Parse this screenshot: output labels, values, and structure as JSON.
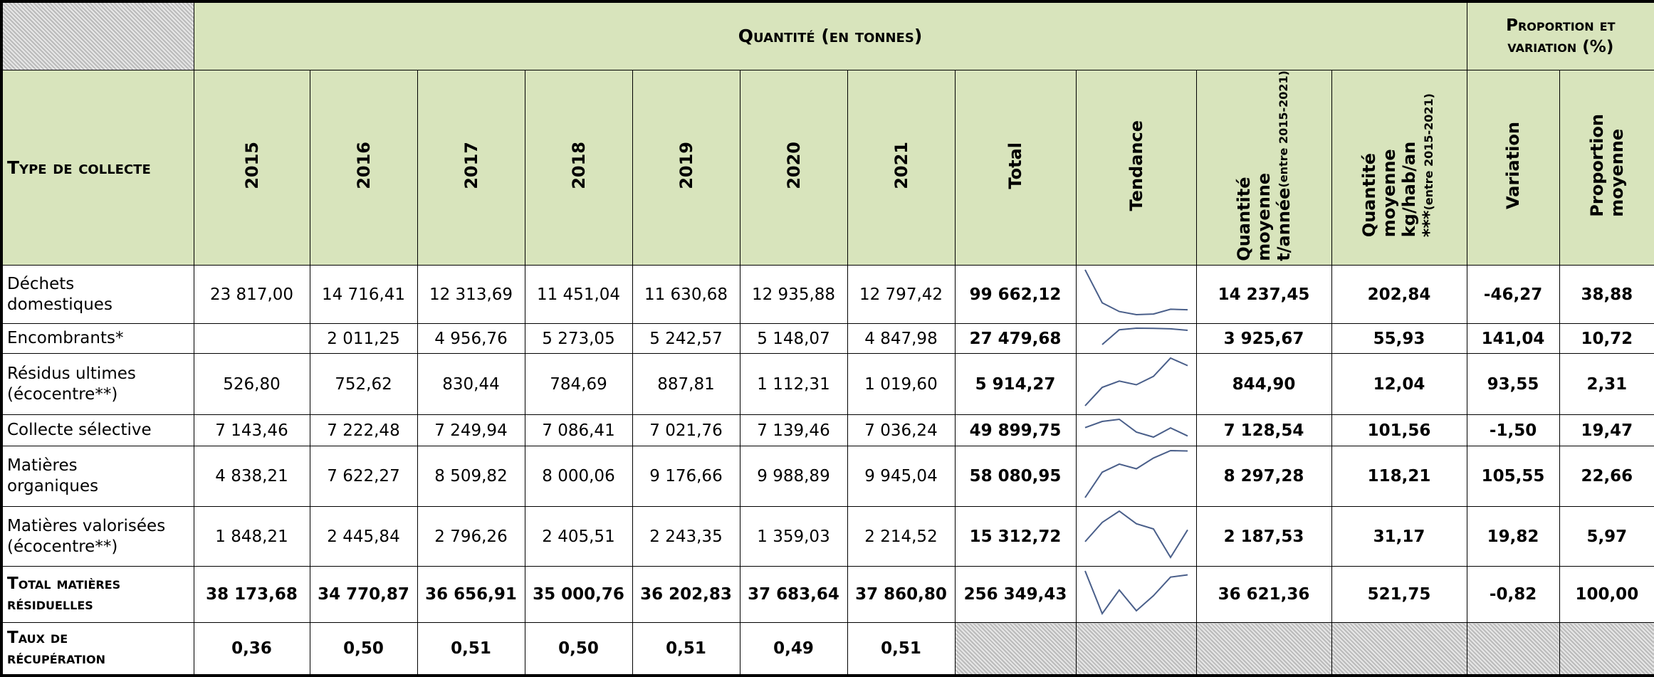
{
  "header": {
    "group_quantity": "Quantité (en tonnes)",
    "group_proportion": [
      "Proportion et",
      "variation (%)"
    ],
    "row_label": "Type de collecte",
    "columns": [
      [
        "2015"
      ],
      [
        "2016"
      ],
      [
        "2017"
      ],
      [
        "2018"
      ],
      [
        "2019"
      ],
      [
        "2020"
      ],
      [
        "2021"
      ],
      [
        "Total"
      ],
      [
        "Tendance"
      ],
      [
        "Quantité",
        "moyenne",
        "t/année"
      ],
      [
        "Quantité",
        "moyenne",
        "kg/hab/an",
        "***"
      ],
      [
        "Variation"
      ],
      [
        "Proportion",
        "moyenne"
      ]
    ],
    "column_notes": {
      "9": "(entre 2015-2021)",
      "10": "(entre 2015-2021)"
    }
  },
  "rows": [
    {
      "label": [
        "Déchets",
        "domestiques"
      ],
      "cells": [
        "23 817,00",
        "14 716,41",
        "12 313,69",
        "11 451,04",
        "11 630,68",
        "12 935,88",
        "12 797,42",
        "99 662,12",
        "14 237,45",
        "202,84",
        "-46,27",
        "38,88"
      ]
    },
    {
      "label": [
        "Encombrants*"
      ],
      "cells": [
        null,
        "2 011,25",
        "4 956,76",
        "5 273,05",
        "5 242,57",
        "5 148,07",
        "4 847,98",
        "27 479,68",
        "3 925,67",
        "55,93",
        "141,04",
        "10,72"
      ]
    },
    {
      "label": [
        "Résidus ultimes",
        "(écocentre**)"
      ],
      "cells": [
        "526,80",
        "752,62",
        "830,44",
        "784,69",
        "887,81",
        "1 112,31",
        "1 019,60",
        "5 914,27",
        "844,90",
        "12,04",
        "93,55",
        "2,31"
      ]
    },
    {
      "label": [
        "Collecte sélective"
      ],
      "cells": [
        "7 143,46",
        "7 222,48",
        "7 249,94",
        "7 086,41",
        "7 021,76",
        "7 139,46",
        "7 036,24",
        "49 899,75",
        "7 128,54",
        "101,56",
        "-1,50",
        "19,47"
      ]
    },
    {
      "label": [
        "Matières",
        "organiques"
      ],
      "cells": [
        "4 838,21",
        "7 622,27",
        "8 509,82",
        "8 000,06",
        "9 176,66",
        "9 988,89",
        "9 945,04",
        "58 080,95",
        "8 297,28",
        "118,21",
        "105,55",
        "22,66"
      ]
    },
    {
      "label": [
        "Matières valorisées",
        "(écocentre**)"
      ],
      "cells": [
        "1 848,21",
        "2 445,84",
        "2 796,26",
        "2 405,51",
        "2 243,35",
        "1 359,03",
        "2 214,52",
        "15 312,72",
        "2 187,53",
        "31,17",
        "19,82",
        "5,97"
      ]
    },
    {
      "label": [
        "Total matières",
        "résiduelles"
      ],
      "total": true,
      "cells": [
        "38 173,68",
        "34 770,87",
        "36 656,91",
        "35 000,76",
        "36 202,83",
        "37 683,64",
        "37 860,80",
        "256 349,43",
        "36 621,36",
        "521,75",
        "-0,82",
        "100,00"
      ]
    },
    {
      "label": [
        "Taux de",
        "récupération"
      ],
      "total": true,
      "cells": [
        "0,36",
        "0,50",
        "0,51",
        "0,50",
        "0,51",
        "0,49",
        "0,51"
      ]
    }
  ]
}
